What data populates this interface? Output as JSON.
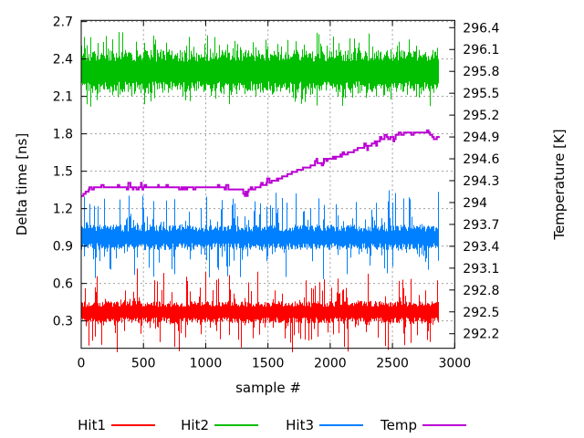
{
  "chart_data": {
    "type": "line",
    "title": "",
    "xlabel": "sample #",
    "ylabel_left": "Delta time [ns]",
    "ylabel_right": "Temperature [K]",
    "xlim": [
      0,
      3000
    ],
    "x_ticks": [
      0,
      500,
      1000,
      1500,
      2000,
      2500,
      3000
    ],
    "ylim_left": [
      0.08,
      2.71
    ],
    "y_ticks_left": [
      0.3,
      0.6,
      0.9,
      1.2,
      1.5,
      1.8,
      2.1,
      2.4,
      2.7
    ],
    "ylim_right": [
      292.0,
      296.5
    ],
    "y_ticks_right": [
      296.4,
      296.1,
      295.8,
      295.5,
      295.2,
      294.9,
      294.6,
      294.3,
      294,
      293.7,
      293.4,
      293.1,
      292.8,
      292.5,
      292.2
    ],
    "grid": true,
    "legend_position": "below-plot-horizontal",
    "samples": 2880,
    "series": [
      {
        "name": "Hit1",
        "color": "#ff0000",
        "axis": "left",
        "type": "noisy_band",
        "center": 0.37,
        "core_halfwidth": 0.075,
        "spike_up": 0.27,
        "spike_down": 0.25,
        "seed": 101,
        "observed_range": [
          0.11,
          0.66
        ],
        "observed_dense_band": [
          0.3,
          0.44
        ]
      },
      {
        "name": "Hit2",
        "color": "#00bf00",
        "axis": "left",
        "type": "noisy_band",
        "center": 2.3,
        "core_halfwidth": 0.145,
        "spike_up": 0.17,
        "spike_down": 0.13,
        "seed": 202,
        "observed_range": [
          2.05,
          2.58
        ],
        "observed_dense_band": [
          2.15,
          2.45
        ]
      },
      {
        "name": "Hit3",
        "color": "#0080ff",
        "axis": "left",
        "type": "noisy_band",
        "center": 0.97,
        "core_halfwidth": 0.085,
        "spike_up": 0.29,
        "spike_down": 0.26,
        "seed": 303,
        "observed_range": [
          0.7,
          1.26
        ],
        "observed_dense_band": [
          0.88,
          1.06
        ]
      },
      {
        "name": "Temp",
        "color": "#bb00d4",
        "axis": "right",
        "type": "step_line",
        "quantize_K": 0.03,
        "line_width": 2,
        "seed": 404,
        "breakpoints": [
          [
            0,
            294.08
          ],
          [
            50,
            294.16
          ],
          [
            130,
            294.22
          ],
          [
            500,
            294.2
          ],
          [
            900,
            294.22
          ],
          [
            1200,
            294.19
          ],
          [
            1330,
            294.16
          ],
          [
            1420,
            294.21
          ],
          [
            1520,
            294.28
          ],
          [
            1620,
            294.35
          ],
          [
            1720,
            294.43
          ],
          [
            1820,
            294.49
          ],
          [
            1920,
            294.54
          ],
          [
            2020,
            294.6
          ],
          [
            2120,
            294.66
          ],
          [
            2220,
            294.73
          ],
          [
            2320,
            294.8
          ],
          [
            2420,
            294.87
          ],
          [
            2520,
            294.92
          ],
          [
            2620,
            294.95
          ],
          [
            2720,
            294.97
          ],
          [
            2790,
            294.96
          ],
          [
            2840,
            294.87
          ],
          [
            2880,
            294.91
          ]
        ]
      }
    ],
    "legend": [
      {
        "label": "Hit1",
        "color": "#ff0000"
      },
      {
        "label": "Hit2",
        "color": "#00bf00"
      },
      {
        "label": "Hit3",
        "color": "#0080ff"
      },
      {
        "label": "Temp",
        "color": "#bb00d4"
      }
    ],
    "style": {
      "background": "#ffffff",
      "border_color": "#000000",
      "grid_color": "#9e9e9e",
      "text_color": "#000000"
    }
  }
}
